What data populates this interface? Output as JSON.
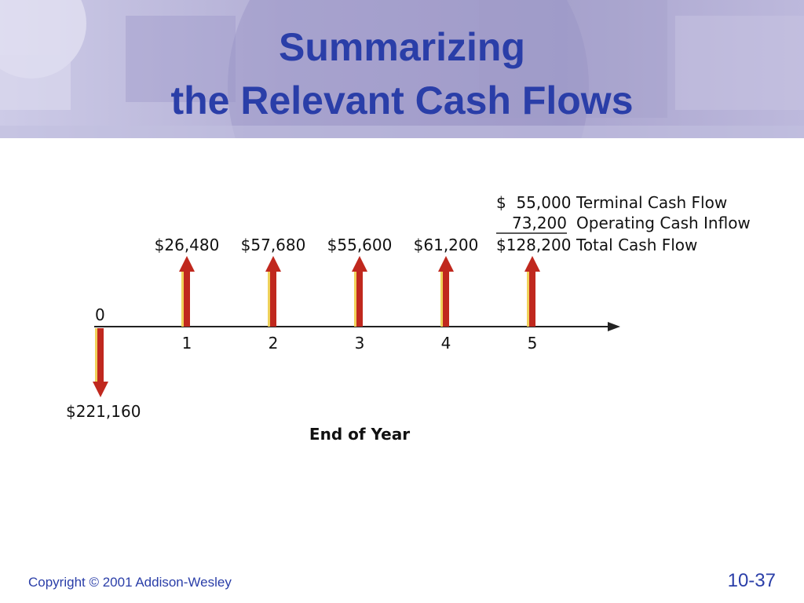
{
  "title": {
    "line1": "Summarizing",
    "line2": "the Relevant Cash Flows"
  },
  "diagram": {
    "origin_label": "0",
    "initial_outflow": "$221,160",
    "year_ticks": [
      "1",
      "2",
      "3",
      "4",
      "5"
    ],
    "inflows": [
      "$26,480",
      "$57,680",
      "$55,600",
      "$61,200",
      "$128,200"
    ],
    "axis_title": "End of Year",
    "year5_breakdown": [
      {
        "amount": "$  55,000",
        "label": "Terminal Cash Flow"
      },
      {
        "amount": "73,200",
        "label": "Operating Cash Inflow"
      },
      {
        "amount": "$128,200",
        "label": "Total Cash Flow"
      }
    ],
    "colors": {
      "arrow_fill": "#c0281e",
      "arrow_highlight": "#f0d25a",
      "axis": "#222222"
    }
  },
  "footer": {
    "copyright": "Copyright © 2001 Addison-Wesley",
    "slide_number": "10-37"
  }
}
